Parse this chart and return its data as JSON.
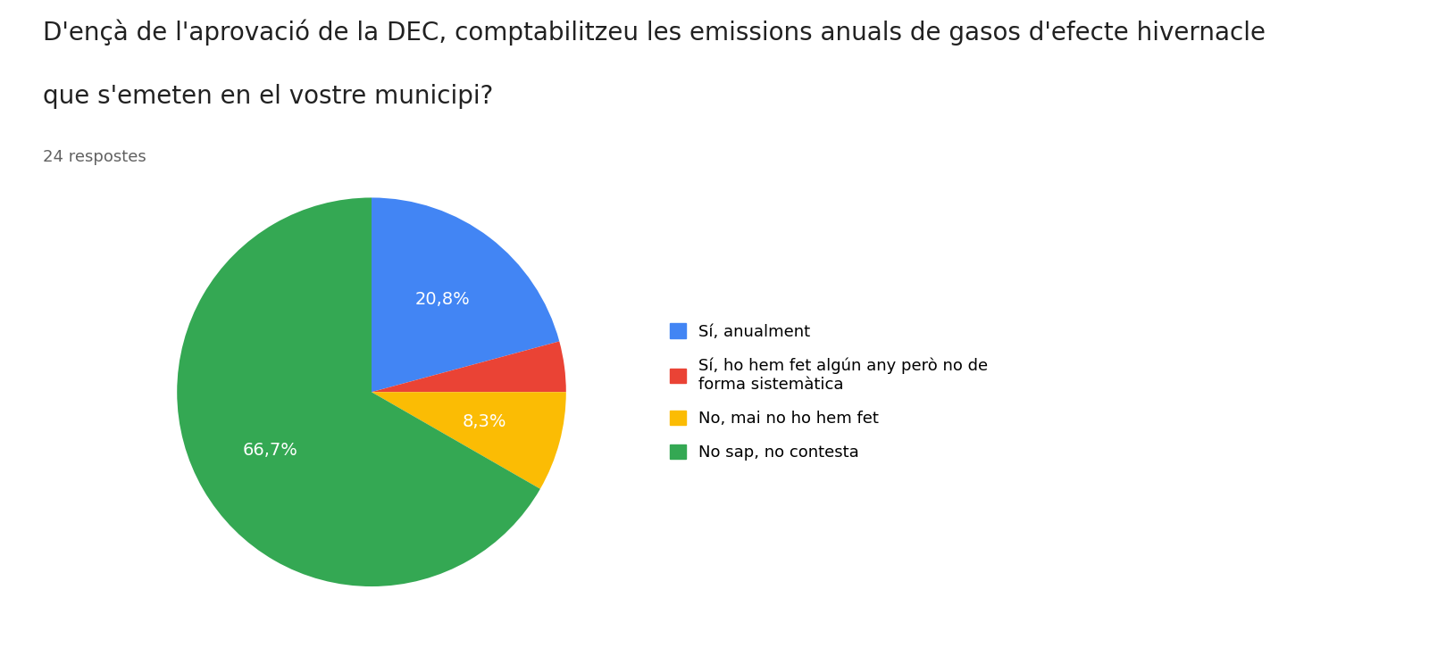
{
  "title_line1": "D'ençà de l'aprovació de la DEC, comptabilitzeu les emissions anuals de gasos d'efecte hivernacle",
  "title_line2": "que s'emeten en el vostre municipi?",
  "subtitle": "24 respostes",
  "slices": [
    20.8,
    4.2,
    8.3,
    66.7
  ],
  "labels": [
    "20,8%",
    "",
    "8,3%",
    "66,7%"
  ],
  "colors": [
    "#4285F4",
    "#EA4335",
    "#FBBC04",
    "#34A853"
  ],
  "legend_labels": [
    "Sí, anualment",
    "Sí, ho hem fet algún any però no de\nforma sistemàtica",
    "No, mai no ho hem fet",
    "No sap, no contesta"
  ],
  "background_color": "#ffffff",
  "title_fontsize": 20,
  "subtitle_fontsize": 13,
  "label_fontsize": 14,
  "legend_fontsize": 13,
  "startangle": 90
}
